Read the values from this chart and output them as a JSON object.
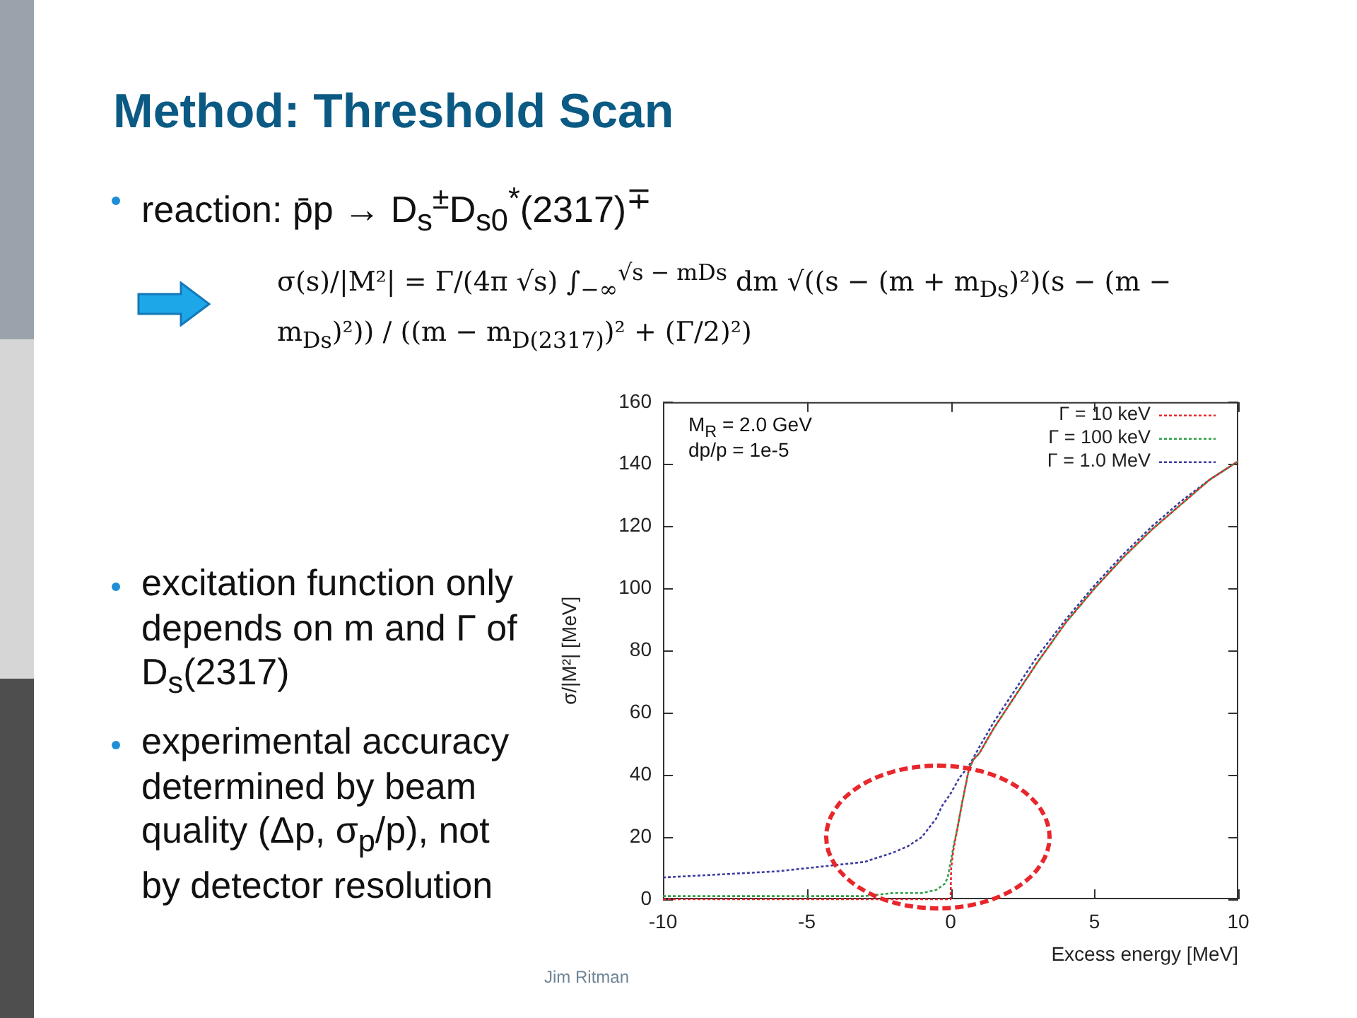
{
  "chart_data": {
    "type": "line",
    "title": "Method: Threshold Scan",
    "xlabel": "Excess energy [MeV]",
    "ylabel": "σ/|M²| [MeV]",
    "series": [
      {
        "name": "Γ = 10 keV",
        "color": "#e8262b",
        "x": [
          -10,
          -5,
          -2,
          -1,
          -0.5,
          -0.1,
          0,
          0.02,
          0.1,
          0.24,
          0.4,
          0.64,
          0.8,
          1,
          1.5,
          2,
          2.5,
          3,
          4,
          5,
          6,
          7,
          8,
          9,
          10
        ],
        "values": [
          0,
          0,
          0,
          0,
          0,
          0,
          0,
          10,
          16,
          23,
          31,
          42,
          45,
          47,
          55,
          62,
          69,
          76,
          89,
          100,
          110,
          119,
          127,
          135,
          141
        ]
      },
      {
        "name": "Γ = 100 keV",
        "color": "#2e9e48",
        "x": [
          -10,
          -5,
          -3,
          -2,
          -1,
          -0.5,
          -0.2,
          -0.1,
          0,
          0.1,
          0.24,
          0.4,
          0.64,
          0.8,
          1,
          1.5,
          2,
          2.5,
          3,
          4,
          5,
          6,
          7,
          8,
          9,
          10
        ],
        "values": [
          1,
          1,
          1,
          2,
          2,
          3,
          5,
          7,
          12,
          17,
          23,
          31,
          42,
          45,
          47,
          55,
          62,
          69,
          76,
          89,
          100,
          110,
          119,
          127,
          135,
          141
        ]
      },
      {
        "name": "Γ = 1.0 MeV",
        "color": "#3c3ca0",
        "x": [
          -10,
          -8,
          -6,
          -5,
          -4,
          -3,
          -2,
          -1.5,
          -1,
          -0.5,
          -0.3,
          0,
          0.3,
          0.64,
          1,
          1.5,
          2,
          2.5,
          3,
          4,
          5,
          6,
          7,
          8,
          9,
          10
        ],
        "values": [
          7,
          8,
          9,
          10,
          11,
          12,
          15,
          17,
          20,
          26,
          30,
          34,
          39,
          43,
          49,
          57,
          64,
          71,
          78,
          90,
          101,
          111,
          120,
          128,
          135,
          141
        ]
      }
    ],
    "xlim": [
      -10,
      10
    ],
    "xticks": [
      -10,
      -5,
      0,
      5,
      10
    ],
    "ylim": [
      0,
      160
    ],
    "yticks": [
      0,
      20,
      40,
      60,
      80,
      100,
      120,
      140,
      160
    ],
    "grid": false,
    "legend": "top right",
    "marker": "none",
    "line_style": "dotted",
    "annotations": [
      "reaction: p̄p → D$_{s}$$^{±}$D$_{s0}$$^{*}$(2317)$^{∓}$",
      "σ(s)/|M²| = Γ/(4π √s) ∫$_{−∞}$$^{√s − mDs}$ dm √((s − (m + m$_{Ds}$)²)(s − (m − m$_{Ds}$)²)) / ((m − m$_{D(2317)}$)² + (Γ/2)²)",
      "excitation function only depends on m and Γ of D$_{s}$(2317)",
      "experimental accuracy determined by beam quality (Δp, σ$_{p}$/p), not by detector resolution",
      "M$_{R}$ = 2.0 GeV",
      "dp/p = 1e-5",
      "Jim Ritman"
    ]
  }
}
